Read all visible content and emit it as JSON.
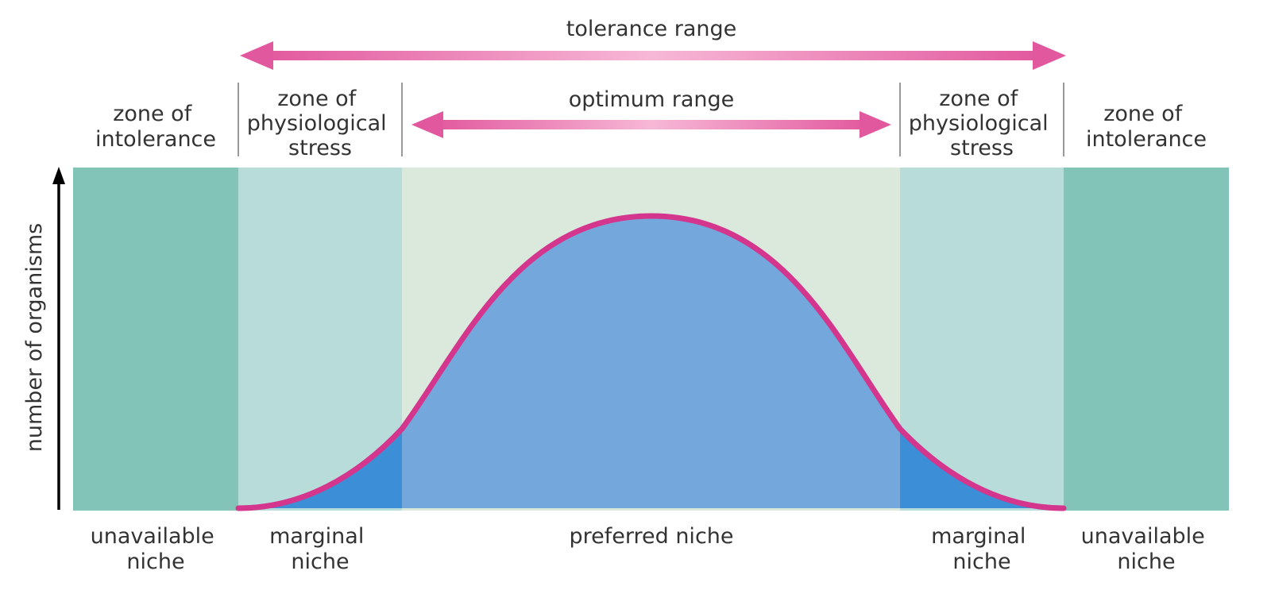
{
  "arrows": {
    "tolerance_label": "tolerance range",
    "optimum_label": "optimum range"
  },
  "zones": {
    "left_intolerance": [
      "zone of",
      "intolerance"
    ],
    "left_stress": [
      "zone of",
      "physiological",
      "stress"
    ],
    "right_stress": [
      "zone of",
      "physiological",
      "stress"
    ],
    "right_intolerance": [
      "zone of",
      "intolerance"
    ]
  },
  "niches": {
    "left_unavailable": [
      "unavailable",
      "niche"
    ],
    "left_marginal": [
      "marginal",
      "niche"
    ],
    "preferred": "preferred niche",
    "right_marginal": [
      "marginal",
      "niche"
    ],
    "right_unavailable": [
      "unavailable",
      "niche"
    ]
  },
  "y_axis_label": "number of organisms",
  "colors": {
    "intolerance": "#83c4b9",
    "stress": "#b8dcda",
    "optimum": "#dbe8dc",
    "curve_fill": "#74a8dc",
    "marginal_fill": "#3c8fd6",
    "curve_stroke": "#d4358d",
    "arrow_outer": "#e2589e",
    "arrow_inner": "#f7b8d6",
    "divider": "#999999",
    "text": "#333333"
  }
}
